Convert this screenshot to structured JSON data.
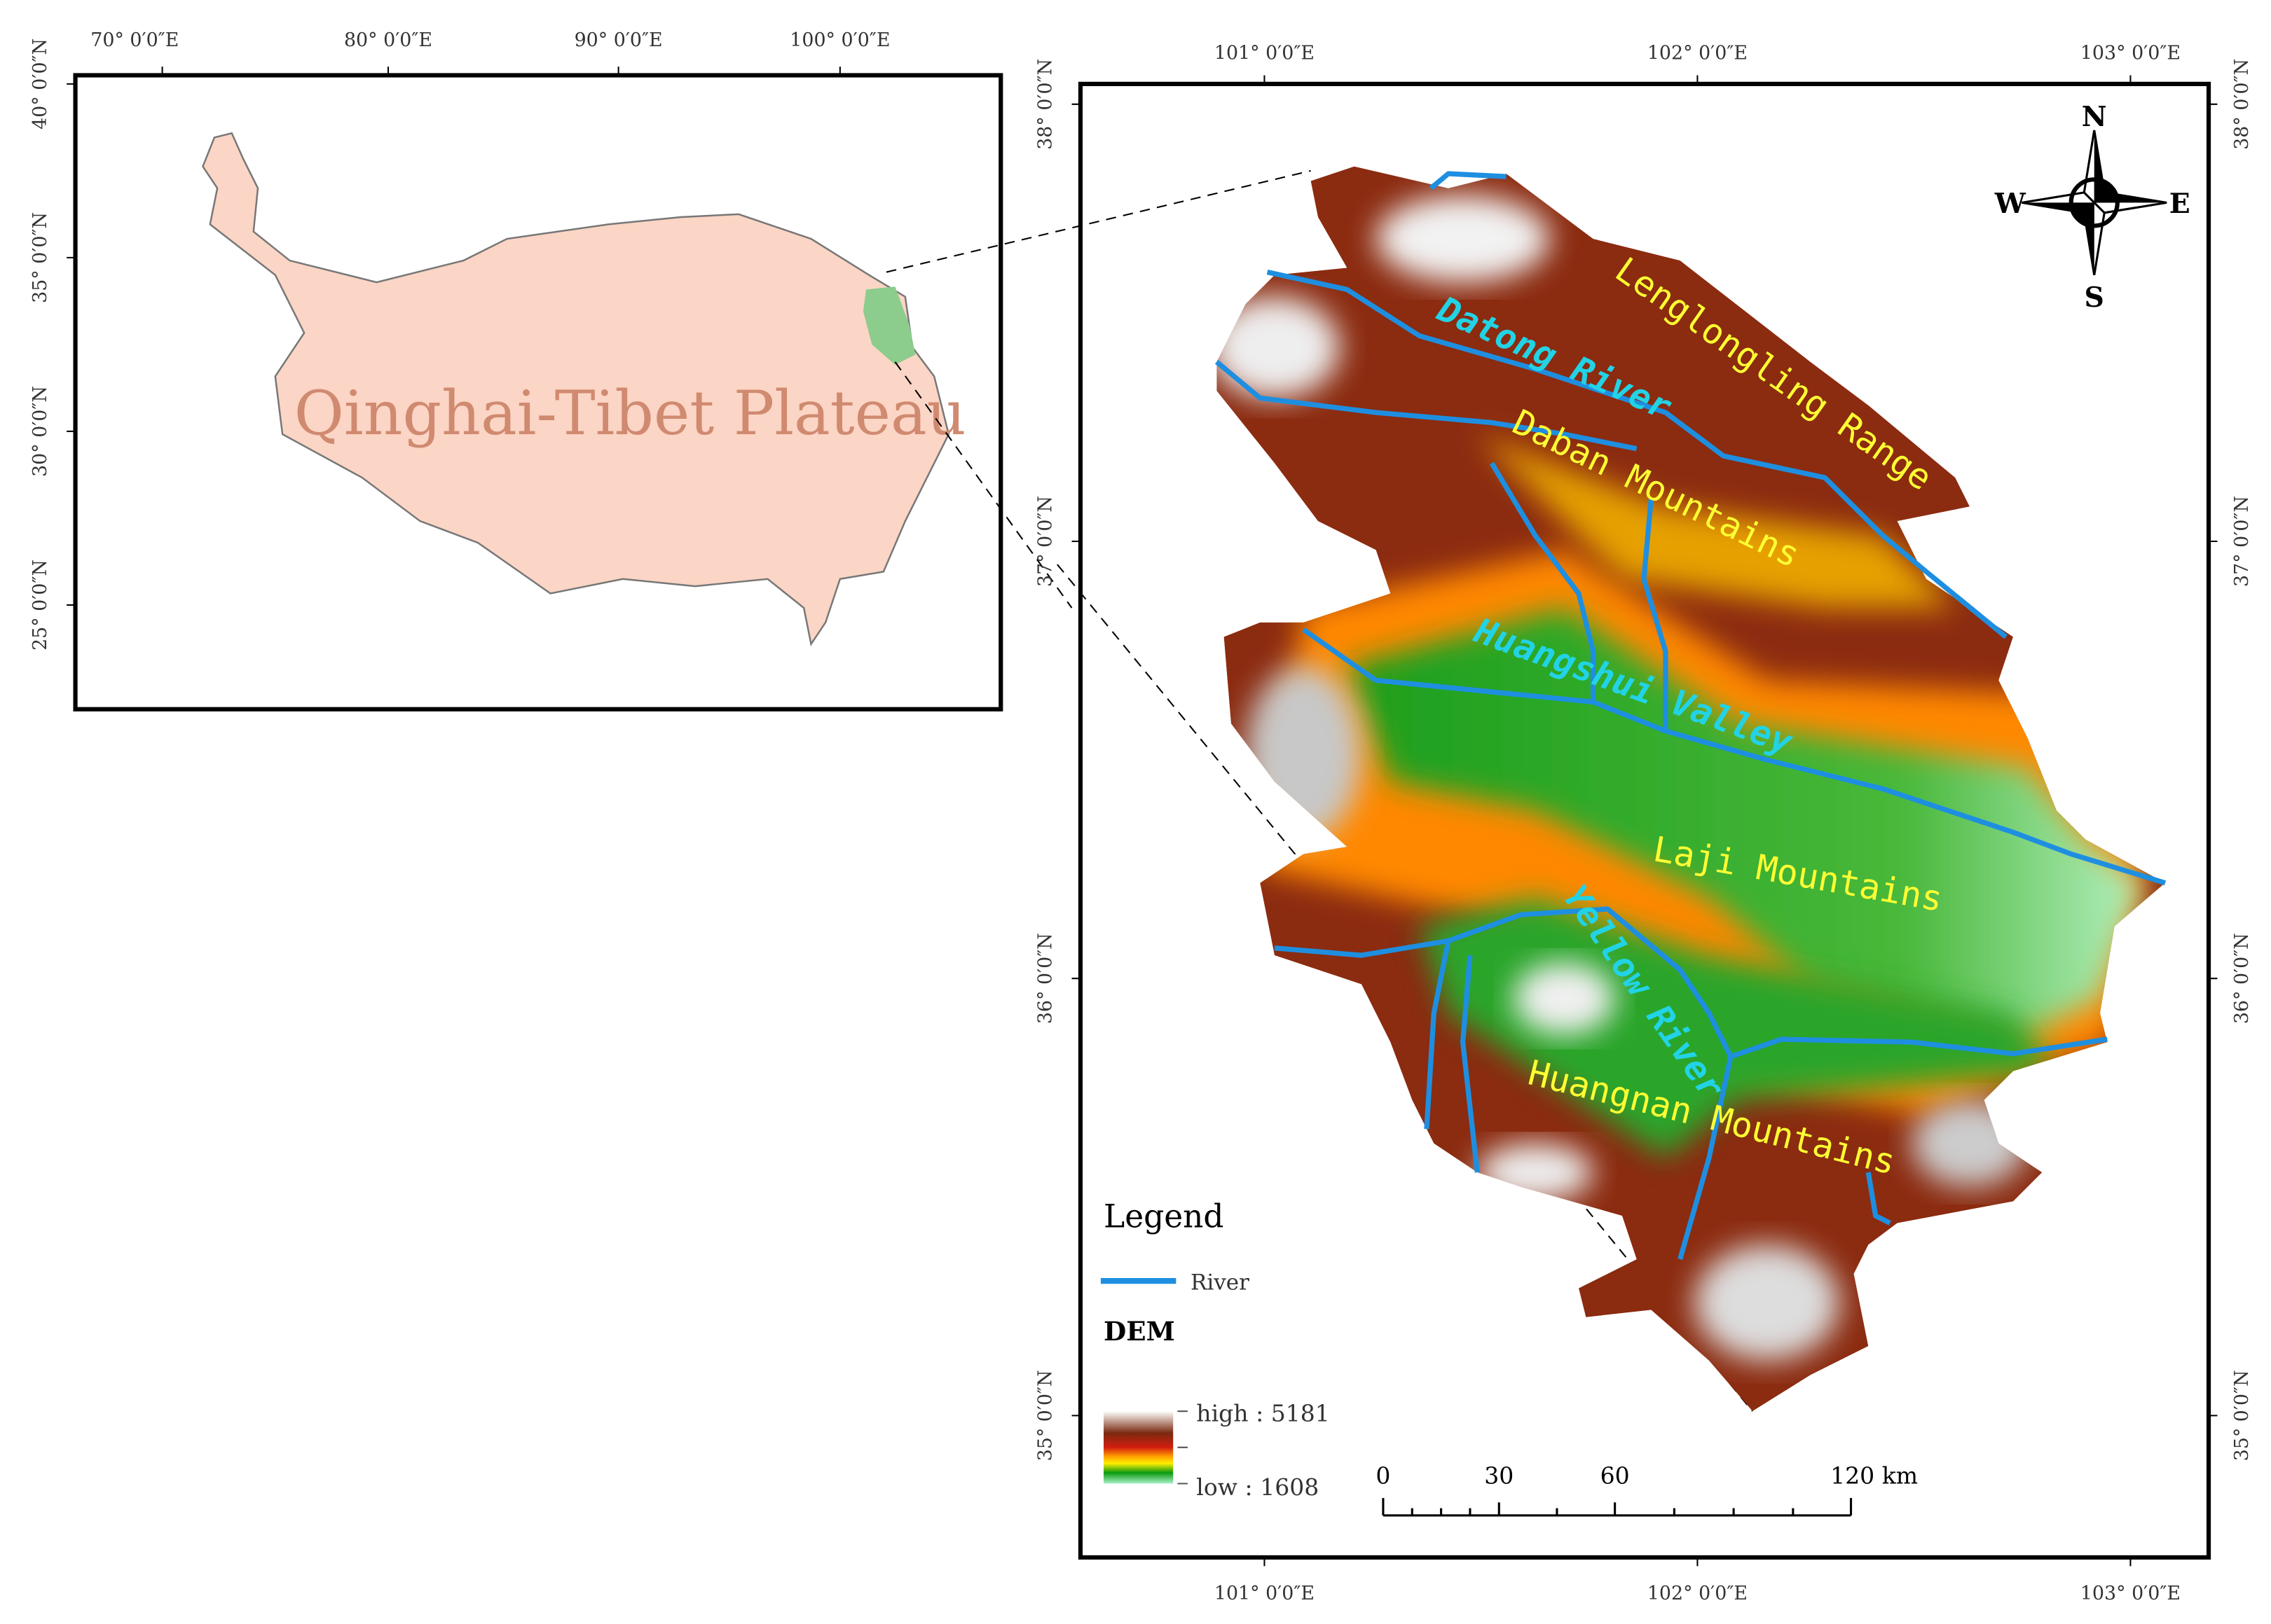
{
  "inset": {
    "lon_labels": [
      "70° 0′0″E",
      "80° 0′0″E",
      "90° 0′0″E",
      "100° 0′0″E"
    ],
    "lat_labels": [
      "40° 0′0″N",
      "35° 0′0″N",
      "30° 0′0″N",
      "25° 0′0″N"
    ],
    "region_label": "Qinghai-Tibet Plateau"
  },
  "main": {
    "lon_labels": [
      "101° 0′0″E",
      "102° 0′0″E",
      "103° 0′0″E"
    ],
    "lat_labels": [
      "38° 0′0″N",
      "37° 0′0″N",
      "36° 0′0″N",
      "35° 0′0″N"
    ],
    "features": [
      "Lenglongling Range",
      "Datong River",
      "Daban Mountains",
      "Huangshui Valley",
      "Laji Mountains",
      "Yellow River",
      "Huangnan Mountains"
    ],
    "compass": [
      "N",
      "S",
      "W",
      "E"
    ]
  },
  "legend": {
    "title": "Legend",
    "river": "River",
    "dem_title": "DEM",
    "high": "high : 5181",
    "low": "low : 1608"
  },
  "scale_bar": {
    "labels": [
      "0",
      "30",
      "60",
      "120 km"
    ]
  }
}
